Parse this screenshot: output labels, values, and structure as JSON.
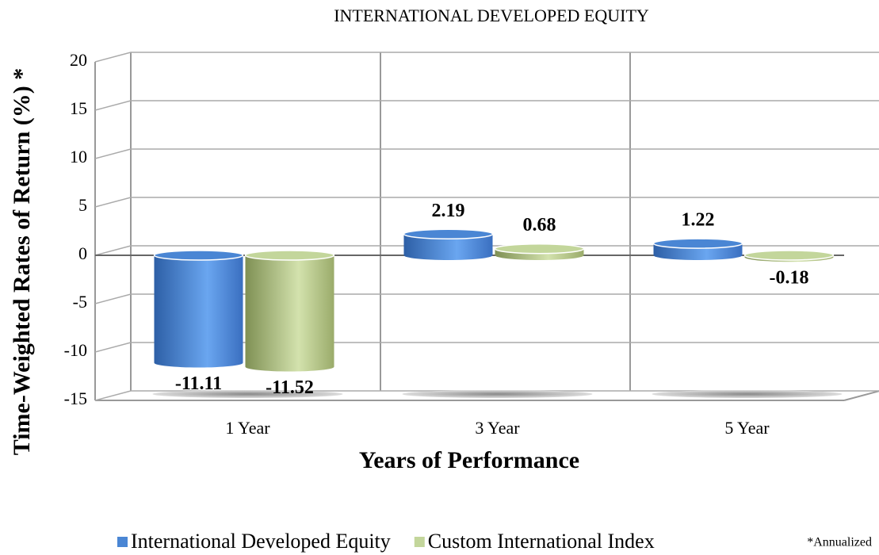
{
  "chart_data": {
    "type": "bar3d",
    "title": "INTERNATIONAL DEVELOPED EQUITY",
    "y_label": "Time-Weighted Rates of Return (%) *",
    "x_label": "Years of Performance",
    "annotation": "*Annualized",
    "categories": [
      "1 Year",
      "3 Year",
      "5 Year"
    ],
    "series": [
      {
        "name": "International Developed Equity",
        "color": "#4a86d4",
        "values": [
          -11.11,
          2.19,
          1.22
        ]
      },
      {
        "name": "Custom International Index",
        "color": "#c3d69b",
        "values": [
          -11.52,
          0.68,
          -0.18
        ]
      }
    ],
    "ylim": [
      -15,
      20
    ],
    "yticks": [
      -15,
      -10,
      -5,
      0,
      5,
      10,
      15,
      20
    ],
    "grid": true
  }
}
